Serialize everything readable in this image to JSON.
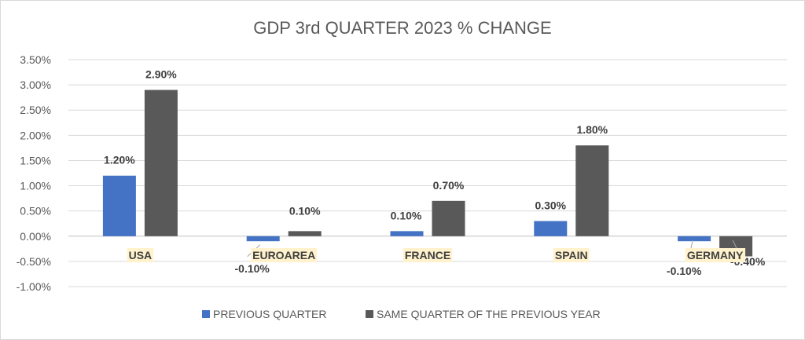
{
  "chart_data": {
    "type": "bar",
    "title": "GDP 3rd QUARTER 2023 % CHANGE",
    "xlabel": "",
    "ylabel": "",
    "categories": [
      "USA",
      "EUROAREA",
      "FRANCE",
      "SPAIN",
      "GERMANY"
    ],
    "series": [
      {
        "name": "PREVIOUS QUARTER",
        "values": [
          1.2,
          -0.1,
          0.1,
          0.3,
          -0.1
        ],
        "labels": [
          "1.20%",
          "-0.10%",
          "0.10%",
          "0.30%",
          "-0.10%"
        ],
        "color": "#4472c4"
      },
      {
        "name": "SAME QUARTER OF THE PREVIOUS YEAR",
        "values": [
          2.9,
          0.1,
          0.7,
          1.8,
          -0.4
        ],
        "labels": [
          "2.90%",
          "0.10%",
          "0.70%",
          "1.80%",
          "-0.40%"
        ],
        "color": "#595959"
      }
    ],
    "ylim": [
      -1.0,
      3.5
    ],
    "yticks": [
      "3.50%",
      "3.00%",
      "2.50%",
      "2.00%",
      "1.50%",
      "1.00%",
      "0.50%",
      "0.00%",
      "-0.50%",
      "-1.00%"
    ],
    "ytick_values": [
      3.5,
      3.0,
      2.5,
      2.0,
      1.5,
      1.0,
      0.5,
      0.0,
      -0.5,
      -1.0
    ],
    "grid": true,
    "legend_position": "bottom",
    "category_label_highlight": "#fff2cc"
  }
}
